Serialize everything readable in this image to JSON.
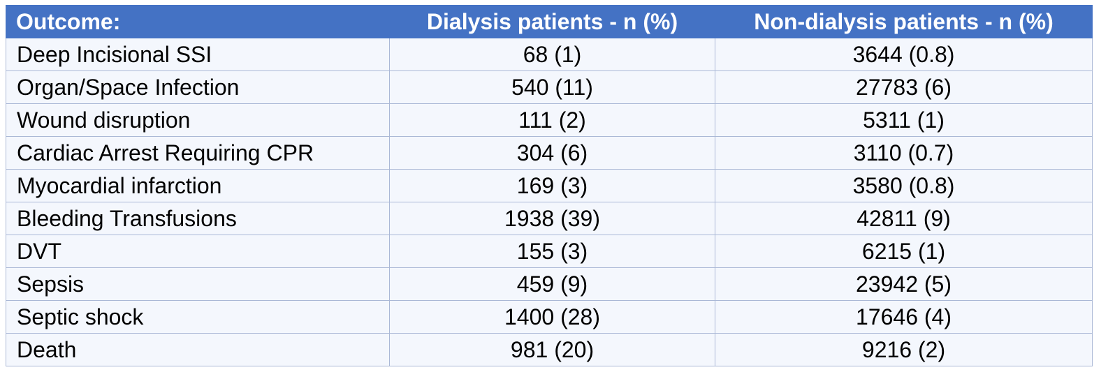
{
  "table": {
    "headers": [
      "Outcome:",
      "Dialysis patients - n (%)",
      "Non-dialysis patients - n (%)"
    ],
    "rows": [
      {
        "outcome": "Deep Incisional SSI",
        "dialysis": "68 (1)",
        "non_dialysis": "3644 (0.8)"
      },
      {
        "outcome": "Organ/Space Infection",
        "dialysis": "540 (11)",
        "non_dialysis": "27783 (6)"
      },
      {
        "outcome": "Wound disruption",
        "dialysis": "111 (2)",
        "non_dialysis": "5311 (1)"
      },
      {
        "outcome": "Cardiac Arrest Requiring CPR",
        "dialysis": "304 (6)",
        "non_dialysis": "3110 (0.7)"
      },
      {
        "outcome": "Myocardial infarction",
        "dialysis": "169 (3)",
        "non_dialysis": "3580 (0.8)"
      },
      {
        "outcome": "Bleeding Transfusions",
        "dialysis": "1938 (39)",
        "non_dialysis": "42811 (9)"
      },
      {
        "outcome": "DVT",
        "dialysis": "155 (3)",
        "non_dialysis": "6215 (1)"
      },
      {
        "outcome": "Sepsis",
        "dialysis": "459 (9)",
        "non_dialysis": "23942 (5)"
      },
      {
        "outcome": "Septic shock",
        "dialysis": "1400 (28)",
        "non_dialysis": "17646 (4)"
      },
      {
        "outcome": "Death",
        "dialysis": "981 (20)",
        "non_dialysis": "9216 (2)"
      }
    ]
  },
  "colors": {
    "header_bg": "#4472c4",
    "header_text": "#ffffff",
    "cell_bg": "#f4f7fd",
    "grid": "#aab8d6"
  }
}
